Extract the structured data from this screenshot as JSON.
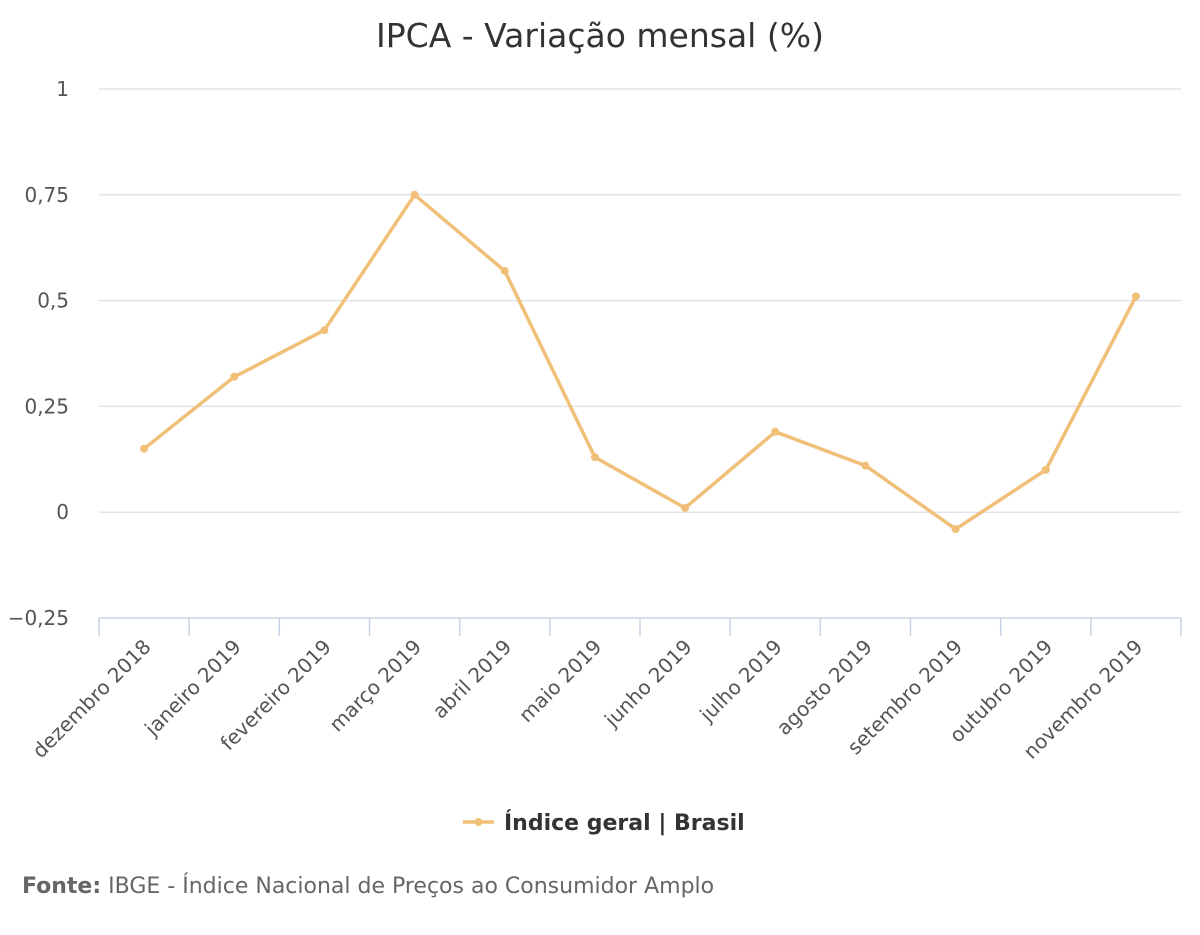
{
  "chart_data": {
    "type": "line",
    "title": "IPCA - Variação mensal (%)",
    "categories": [
      "dezembro 2018",
      "janeiro 2019",
      "fevereiro 2019",
      "março 2019",
      "abril 2019",
      "maio 2019",
      "junho 2019",
      "julho 2019",
      "agosto 2019",
      "setembro 2019",
      "outubro 2019",
      "novembro 2019"
    ],
    "series": [
      {
        "name": "Índice geral | Brasil",
        "color": "#f0bf78",
        "values": [
          0.15,
          0.32,
          0.43,
          0.75,
          0.57,
          0.13,
          0.01,
          0.19,
          0.11,
          -0.04,
          0.1,
          0.51
        ]
      }
    ],
    "ylim": [
      -0.25,
      1
    ],
    "yticks": [
      1,
      0.75,
      0.5,
      0.25,
      0,
      -0.25
    ],
    "ytick_labels": [
      "1",
      "0,75",
      "0,5",
      "0,25",
      "0",
      "−0,25"
    ],
    "grid": true,
    "legend_position": "bottom-center"
  },
  "source": {
    "label": "Fonte:",
    "text": "IBGE - Índice Nacional de Preços ao Consumidor Amplo"
  }
}
